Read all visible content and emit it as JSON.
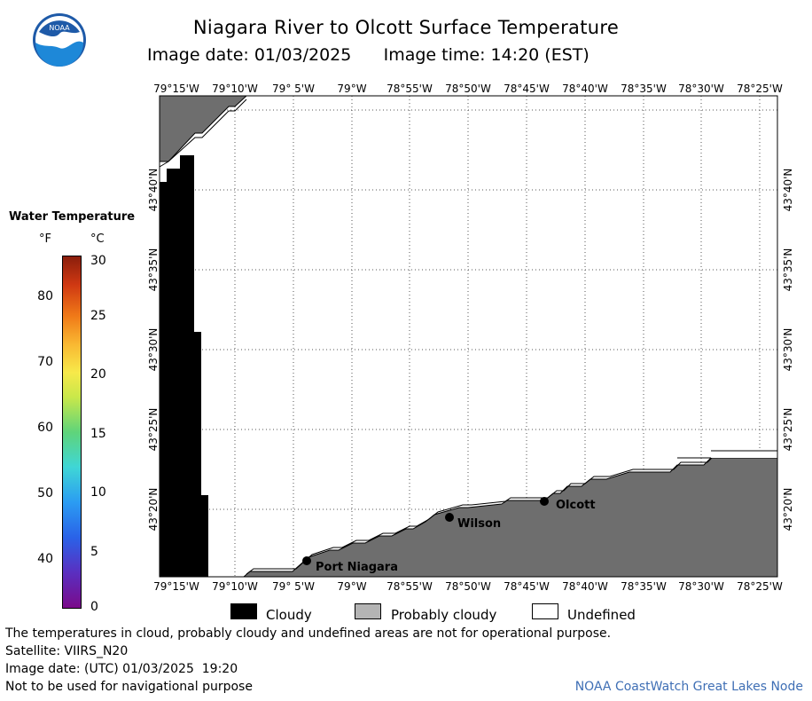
{
  "header": {
    "title": "Niagara River to Olcott Surface Temperature",
    "image_date_label": "Image date: 01/03/2025",
    "image_time_label": "Image time: 14:20 (EST)",
    "logo_text": "NOAA"
  },
  "map": {
    "lon_ticks": [
      "79°15'W",
      "79°10'W",
      "79° 5'W",
      "79°W",
      "78°55'W",
      "78°50'W",
      "78°45'W",
      "78°40'W",
      "78°35'W",
      "78°30'W",
      "78°25'W"
    ],
    "lat_ticks": [
      "43°40'N",
      "43°35'N",
      "43°30'N",
      "43°25'N",
      "43°20'N"
    ],
    "places": [
      {
        "name": "Port Niagara"
      },
      {
        "name": "Wilson"
      },
      {
        "name": "Olcott"
      }
    ],
    "colors": {
      "cloudy": "#000000",
      "probably_cloudy": "#6e6e6e",
      "undefined": "#ffffff"
    }
  },
  "legend": {
    "title": "Water Temperature",
    "unit_f": "°F",
    "unit_c": "°C",
    "f_ticks": [
      "80",
      "70",
      "60",
      "50",
      "40"
    ],
    "c_ticks": [
      "30",
      "25",
      "20",
      "15",
      "10",
      "5",
      "0"
    ],
    "range_c": [
      0,
      30
    ]
  },
  "key": {
    "cloudy": "Cloudy",
    "probably_cloudy": "Probably cloudy",
    "undefined": "Undefined"
  },
  "footer": {
    "note": "The temperatures in cloud, probably cloudy and undefined areas are not for operational purpose.",
    "satellite": "Satellite: VIIRS_N20",
    "utc_date": "Image date: (UTC) 01/03/2025  19:20",
    "nav_warning": "Not to be used for navigational purpose",
    "credit": "NOAA CoastWatch Great Lakes Node"
  }
}
